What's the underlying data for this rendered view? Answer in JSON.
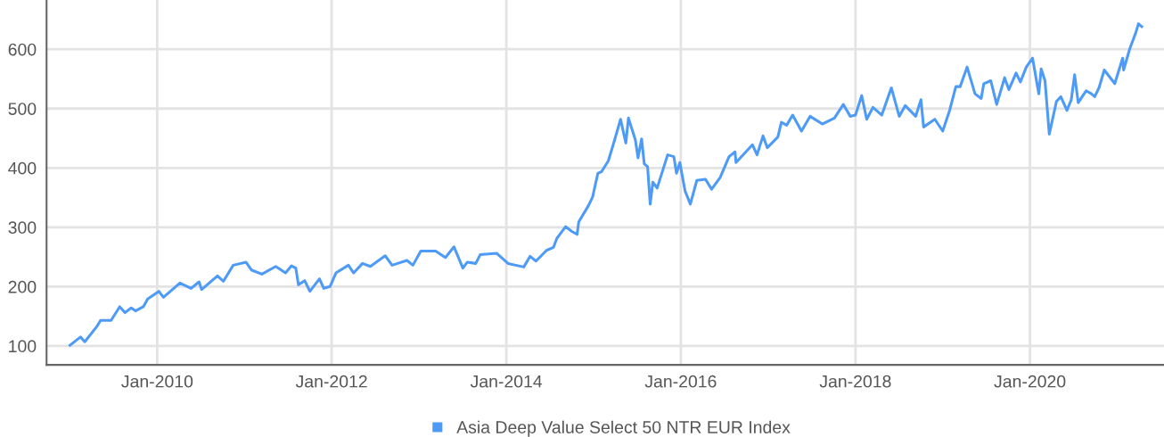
{
  "chart_data": {
    "type": "line",
    "x": [
      "2009-01-01",
      "2009-02-14",
      "2009-03-04",
      "2009-04-24",
      "2009-05-09",
      "2009-06-22",
      "2009-07-28",
      "2009-08-19",
      "2009-09-14",
      "2009-10-02",
      "2009-11-04",
      "2009-11-22",
      "2010-01-08",
      "2010-01-27",
      "2010-04-06",
      "2010-05-23",
      "2010-06-25",
      "2010-07-06",
      "2010-09-10",
      "2010-10-05",
      "2010-11-15",
      "2011-01-08",
      "2011-01-30",
      "2011-03-15",
      "2011-05-12",
      "2011-06-22",
      "2011-07-17",
      "2011-08-04",
      "2011-08-15",
      "2011-09-10",
      "2011-10-02",
      "2011-11-11",
      "2011-11-29",
      "2011-12-25",
      "2012-01-19",
      "2012-03-11",
      "2012-04-02",
      "2012-05-09",
      "2012-06-11",
      "2012-08-12",
      "2012-09-10",
      "2012-11-11",
      "2012-12-06",
      "2013-01-08",
      "2013-03-11",
      "2013-04-21",
      "2013-05-27",
      "2013-07-03",
      "2013-07-21",
      "2013-08-26",
      "2013-09-14",
      "2013-11-22",
      "2014-01-08",
      "2014-03-15",
      "2014-04-10",
      "2014-05-05",
      "2014-06-18",
      "2014-07-17",
      "2014-07-31",
      "2014-09-06",
      "2014-10-02",
      "2014-10-24",
      "2014-10-31",
      "2014-12-10",
      "2014-12-28",
      "2015-01-19",
      "2015-02-04",
      "2015-03-04",
      "2015-03-30",
      "2015-04-24",
      "2015-05-16",
      "2015-05-27",
      "2015-06-25",
      "2015-07-06",
      "2015-07-21",
      "2015-08-01",
      "2015-08-15",
      "2015-08-26",
      "2015-09-06",
      "2015-09-24",
      "2015-11-07",
      "2015-12-03",
      "2015-12-14",
      "2015-12-28",
      "2016-01-19",
      "2016-02-10",
      "2016-03-08",
      "2016-04-13",
      "2016-05-09",
      "2016-06-14",
      "2016-07-21",
      "2016-08-15",
      "2016-08-19",
      "2016-10-27",
      "2016-11-15",
      "2016-12-10",
      "2016-12-28",
      "2017-02-10",
      "2017-02-25",
      "2017-03-19",
      "2017-04-13",
      "2017-05-20",
      "2017-06-25",
      "2017-08-15",
      "2017-10-05",
      "2017-11-11",
      "2017-12-10",
      "2018-01-01",
      "2018-01-27",
      "2018-02-17",
      "2018-03-15",
      "2018-04-21",
      "2018-05-31",
      "2018-07-03",
      "2018-07-28",
      "2018-09-10",
      "2018-10-02",
      "2018-10-13",
      "2018-11-29",
      "2019-01-01",
      "2019-01-30",
      "2019-02-25",
      "2019-03-15",
      "2019-04-13",
      "2019-05-16",
      "2019-06-11",
      "2019-06-22",
      "2019-07-21",
      "2019-08-15",
      "2019-09-17",
      "2019-10-05",
      "2019-11-04",
      "2019-11-22",
      "2019-12-17",
      "2020-01-12",
      "2020-02-07",
      "2020-02-17",
      "2020-03-04",
      "2020-03-22",
      "2020-04-21",
      "2020-05-09",
      "2020-06-04",
      "2020-06-22",
      "2020-07-06",
      "2020-07-21",
      "2020-08-23",
      "2020-09-14",
      "2020-09-28",
      "2020-10-16",
      "2020-11-07",
      "2020-12-21",
      "2021-01-23",
      "2021-01-27",
      "2021-02-21",
      "2021-03-19",
      "2021-03-30",
      "2021-04-13"
    ],
    "series": [
      {
        "name": "Asia Deep Value Select 50 NTR EUR Index",
        "color": "#4d9bf7",
        "values": [
          101,
          115,
          107,
          133,
          143,
          143,
          166,
          156,
          164,
          159,
          166,
          179,
          192,
          182,
          206,
          197,
          208,
          195,
          218,
          209,
          236,
          241,
          228,
          221,
          234,
          223,
          235,
          231,
          203,
          210,
          192,
          213,
          197,
          200,
          223,
          236,
          223,
          239,
          234,
          252,
          236,
          244,
          236,
          260,
          260,
          249,
          267,
          231,
          241,
          239,
          254,
          256,
          239,
          233,
          251,
          243,
          261,
          266,
          281,
          301,
          293,
          288,
          309,
          336,
          351,
          391,
          394,
          412,
          447,
          482,
          442,
          484,
          447,
          417,
          449,
          407,
          402,
          339,
          376,
          366,
          422,
          419,
          391,
          409,
          361,
          339,
          379,
          381,
          364,
          384,
          419,
          427,
          409,
          439,
          422,
          454,
          434,
          452,
          477,
          472,
          489,
          462,
          487,
          474,
          484,
          507,
          487,
          489,
          522,
          482,
          502,
          489,
          535,
          487,
          505,
          487,
          515,
          469,
          482,
          462,
          497,
          537,
          537,
          570,
          525,
          517,
          542,
          547,
          507,
          552,
          532,
          560,
          545,
          570,
          585,
          525,
          567,
          547,
          457,
          512,
          520,
          497,
          515,
          557,
          510,
          530,
          525,
          520,
          535,
          565,
          542,
          585,
          565,
          600,
          628,
          643,
          638
        ]
      }
    ],
    "xlim": [
      "2008-09-25",
      "2021-07-15"
    ],
    "xticks": [
      {
        "value": "2010-01-01",
        "label": "Jan-2010"
      },
      {
        "value": "2012-01-01",
        "label": "Jan-2012"
      },
      {
        "value": "2014-01-01",
        "label": "Jan-2014"
      },
      {
        "value": "2016-01-01",
        "label": "Jan-2016"
      },
      {
        "value": "2018-01-01",
        "label": "Jan-2018"
      },
      {
        "value": "2020-01-01",
        "label": "Jan-2020"
      }
    ],
    "ylim": [
      68,
      683
    ],
    "yticks": [
      100,
      200,
      300,
      400,
      500,
      600
    ],
    "grid": true,
    "legend": "bottom",
    "marker": "none",
    "line_style": "solid"
  }
}
